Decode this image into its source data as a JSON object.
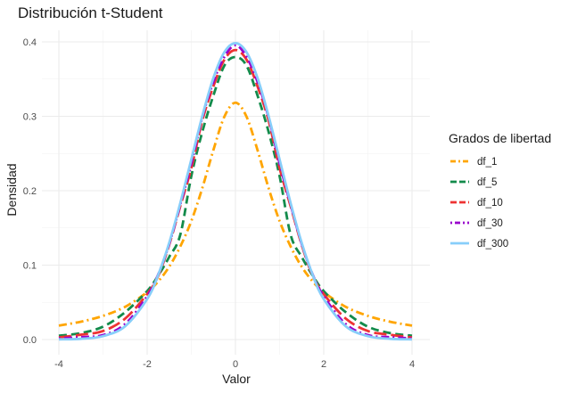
{
  "chart_data": {
    "type": "line",
    "title": "Distribución t-Student",
    "xlabel": "Valor",
    "ylabel": "Densidad",
    "xlim": [
      -4,
      4
    ],
    "ylim": [
      0,
      0.4
    ],
    "x_ticks": [
      -4,
      -2,
      0,
      2,
      4
    ],
    "y_ticks": [
      0.0,
      0.1,
      0.2,
      0.3,
      0.4
    ],
    "y_tick_labels": [
      "0.0",
      "0.1",
      "0.2",
      "0.3",
      "0.4"
    ],
    "grid": true,
    "legend_title": "Grados de libertad",
    "legend_position": "right",
    "x": [
      -4,
      -3.5,
      -3,
      -2.5,
      -2,
      -1.75,
      -1.5,
      -1.25,
      -1,
      -0.75,
      -0.5,
      -0.25,
      0,
      0.25,
      0.5,
      0.75,
      1,
      1.25,
      1.5,
      1.75,
      2,
      2.5,
      3,
      3.5,
      4
    ],
    "series": [
      {
        "name": "df_1",
        "color": "#FFA500",
        "dash": "dashdot",
        "values": [
          0.0187,
          0.024,
          0.0318,
          0.0439,
          0.0637,
          0.0781,
          0.0979,
          0.125,
          0.1592,
          0.2037,
          0.2546,
          0.2996,
          0.3183,
          0.2996,
          0.2546,
          0.2037,
          0.1592,
          0.125,
          0.0979,
          0.0781,
          0.0637,
          0.0439,
          0.0318,
          0.024,
          0.0187
        ]
      },
      {
        "name": "df_5",
        "color": "#138B4B",
        "dash": "dashed",
        "values": [
          0.0051,
          0.0087,
          0.0173,
          0.0367,
          0.0651,
          0.0859,
          0.1111,
          0.1407,
          0.2197,
          0.2793,
          0.3279,
          0.3682,
          0.3796,
          0.3682,
          0.3279,
          0.2793,
          0.2197,
          0.1407,
          0.1111,
          0.0859,
          0.0651,
          0.0367,
          0.0173,
          0.0087,
          0.0051
        ]
      },
      {
        "name": "df_10",
        "color": "#EE3333",
        "dash": "longdash",
        "values": [
          0.0028,
          0.0065,
          0.0114,
          0.0281,
          0.0611,
          0.0855,
          0.1274,
          0.1791,
          0.2304,
          0.2945,
          0.3402,
          0.3762,
          0.3891,
          0.3762,
          0.3402,
          0.2945,
          0.2304,
          0.1791,
          0.1274,
          0.0855,
          0.0611,
          0.0281,
          0.0114,
          0.0065,
          0.0028
        ]
      },
      {
        "name": "df_30",
        "color": "#9900CC",
        "dash": "dotdash",
        "values": [
          0.0015,
          0.0032,
          0.006,
          0.0207,
          0.0581,
          0.0873,
          0.1286,
          0.1813,
          0.2367,
          0.299,
          0.3464,
          0.38,
          0.3956,
          0.38,
          0.3464,
          0.299,
          0.2367,
          0.1813,
          0.1286,
          0.0873,
          0.0581,
          0.0207,
          0.006,
          0.0032,
          0.0015
        ]
      },
      {
        "name": "df_300",
        "color": "#87CEFA",
        "dash": "solid",
        "values": [
          0.0002,
          0.001,
          0.0046,
          0.0178,
          0.0543,
          0.0868,
          0.13,
          0.1833,
          0.242,
          0.3005,
          0.3515,
          0.3862,
          0.3983,
          0.3862,
          0.3515,
          0.3005,
          0.242,
          0.1833,
          0.13,
          0.0868,
          0.0543,
          0.0178,
          0.0046,
          0.001,
          0.0002
        ]
      }
    ]
  }
}
